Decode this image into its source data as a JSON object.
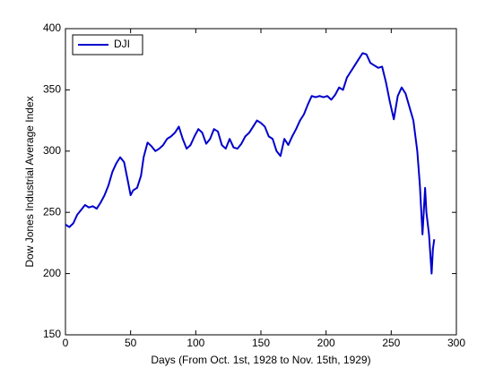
{
  "chart_data": {
    "type": "line",
    "xlabel": "Days (From Oct. 1st, 1928 to Nov. 15th, 1929)",
    "ylabel": "Dow Jones Industrial Average Index",
    "x": [
      0,
      3,
      6,
      9,
      12,
      15,
      18,
      21,
      24,
      27,
      30,
      33,
      36,
      39,
      42,
      45,
      48,
      50,
      52,
      55,
      58,
      60,
      63,
      66,
      69,
      72,
      75,
      78,
      81,
      84,
      87,
      90,
      93,
      96,
      99,
      102,
      105,
      108,
      111,
      114,
      117,
      120,
      123,
      126,
      129,
      132,
      135,
      138,
      141,
      144,
      147,
      150,
      153,
      156,
      159,
      162,
      165,
      168,
      171,
      174,
      177,
      180,
      183,
      186,
      189,
      192,
      195,
      198,
      201,
      204,
      207,
      210,
      213,
      216,
      219,
      222,
      225,
      228,
      231,
      234,
      237,
      240,
      243,
      246,
      249,
      252,
      255,
      258,
      261,
      264,
      267,
      270,
      272,
      274,
      276,
      277,
      279,
      281,
      282,
      283
    ],
    "series": [
      {
        "name": "DJI",
        "color": "#0000cc",
        "values": [
          240,
          238,
          241,
          248,
          252,
          256,
          254,
          255,
          253,
          258,
          264,
          272,
          283,
          290,
          295,
          291,
          275,
          264,
          268,
          270,
          280,
          295,
          307,
          304,
          300,
          302,
          305,
          310,
          312,
          315,
          320,
          310,
          302,
          305,
          312,
          318,
          315,
          306,
          310,
          318,
          316,
          305,
          302,
          310,
          303,
          302,
          306,
          312,
          315,
          320,
          325,
          323,
          320,
          312,
          310,
          300,
          296,
          310,
          305,
          312,
          318,
          325,
          330,
          338,
          345,
          344,
          345,
          344,
          345,
          342,
          346,
          352,
          350,
          360,
          365,
          370,
          375,
          380,
          379,
          372,
          370,
          368,
          369,
          356,
          340,
          326,
          345,
          352,
          347,
          336,
          325,
          300,
          272,
          232,
          270,
          250,
          232,
          200,
          220,
          228
        ]
      }
    ],
    "xlim": [
      0,
      300
    ],
    "xticks": [
      0,
      50,
      100,
      150,
      200,
      250,
      300
    ],
    "ylim": [
      150,
      400
    ],
    "yticks": [
      150,
      200,
      250,
      300,
      350,
      400
    ],
    "legend": "upper left"
  }
}
